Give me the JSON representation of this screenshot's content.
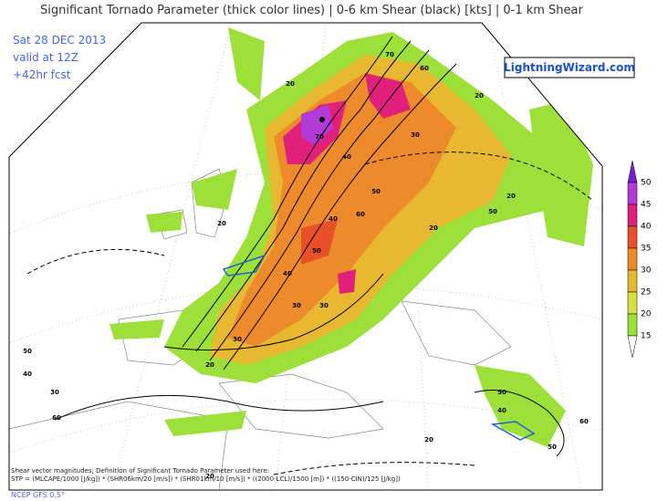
{
  "header": {
    "title": "Significant Tornado Parameter (thick color lines) | 0-6 km Shear (black) [kts] | 0-1 km Shear",
    "date": "Sat 28 DEC 2013",
    "valid": "valid at 12Z",
    "forecast": "+42hr fcst",
    "logo": "LightningWizard.com"
  },
  "colorbar": {
    "labels": [
      "50",
      "45",
      "40",
      "35",
      "30",
      "25",
      "20",
      "15"
    ],
    "colors": [
      "#7a1fd0",
      "#b23ad6",
      "#e0207a",
      "#e8502a",
      "#ec8a2c",
      "#e8b830",
      "#d8e040",
      "#9ee03a",
      "#ffffff"
    ]
  },
  "contour_labels": [
    "70",
    "60",
    "20",
    "70",
    "30",
    "40",
    "50",
    "20",
    "20",
    "30",
    "40",
    "60",
    "50",
    "40",
    "30",
    "20",
    "50",
    "40",
    "20",
    "30",
    "20",
    "50",
    "40",
    "60",
    "50",
    "60",
    "30",
    "20",
    "20",
    "50"
  ],
  "footer": {
    "line1": "Shear vector magnitudes; Definition of Significant Tornado Parameter used here:",
    "line2": "STP = (MLCAPE/1000 [J/kg]) * (SHR06km/20 [m/s]) * (SHR01km/10 [m/s]) * ((2000-LCL)/1500 [m]) * ((150-CIN)/125 [J/kg])",
    "line3": "NCEP GFS 0.5°"
  }
}
